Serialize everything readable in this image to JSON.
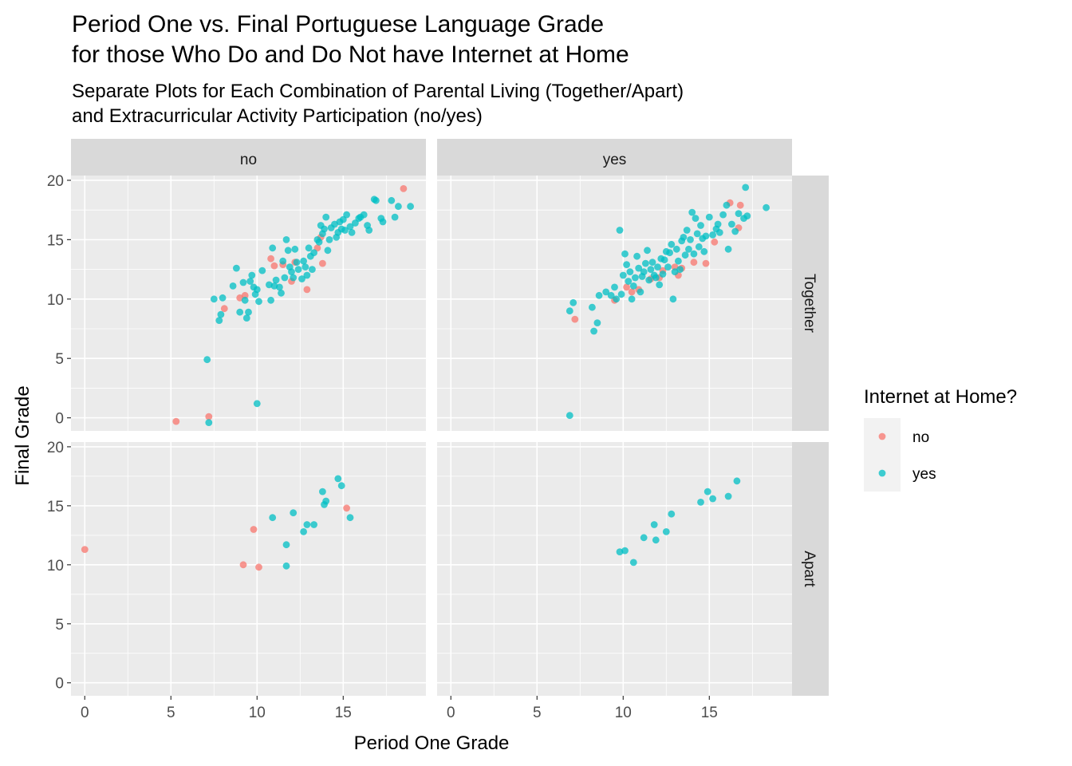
{
  "chart_data": {
    "type": "scatter",
    "title_lines": [
      "Period One vs. Final Portuguese Language Grade",
      "for those Who Do and Do Not have Internet at Home"
    ],
    "subtitle_lines": [
      "Separate Plots for Each Combination of Parental Living (Together/Apart)",
      "and Extracurricular Activity Participation (no/yes)"
    ],
    "xlabel": "Period One Grade",
    "ylabel": "Final Grade",
    "xlim": [
      -0.8,
      19.8
    ],
    "ylim": [
      -1.1,
      20.4
    ],
    "x_ticks": [
      0,
      5,
      10,
      15
    ],
    "y_ticks": [
      0,
      5,
      10,
      15,
      20
    ],
    "facet_cols": [
      "no",
      "yes"
    ],
    "facet_rows": [
      "Together",
      "Apart"
    ],
    "legend": {
      "title": "Internet at Home?",
      "position": "right",
      "entries": [
        {
          "key": "no",
          "label": "no",
          "color": "#F8766D"
        },
        {
          "key": "yes",
          "label": "yes",
          "color": "#00BFC4"
        }
      ]
    },
    "panels": [
      {
        "col": "no",
        "row": "Together",
        "series": [
          {
            "name": "no",
            "points": [
              [
                5.3,
                -0.3
              ],
              [
                7.2,
                0.1
              ],
              [
                8.1,
                9.2
              ],
              [
                9.3,
                10.3
              ],
              [
                9.0,
                10.1
              ],
              [
                10.8,
                13.4
              ],
              [
                11.0,
                12.8
              ],
              [
                11.5,
                12.9
              ],
              [
                12.0,
                11.5
              ],
              [
                12.2,
                13.1
              ],
              [
                12.9,
                10.8
              ],
              [
                13.5,
                14.3
              ],
              [
                13.7,
                15.2
              ],
              [
                13.8,
                13.0
              ],
              [
                18.5,
                19.3
              ]
            ]
          },
          {
            "name": "yes",
            "points": [
              [
                7.2,
                -0.4
              ],
              [
                7.1,
                4.9
              ],
              [
                10.0,
                1.2
              ],
              [
                7.5,
                10.0
              ],
              [
                7.8,
                8.2
              ],
              [
                7.9,
                8.7
              ],
              [
                8.0,
                10.1
              ],
              [
                8.6,
                11.1
              ],
              [
                8.8,
                12.6
              ],
              [
                9.0,
                8.9
              ],
              [
                9.2,
                11.4
              ],
              [
                9.3,
                9.9
              ],
              [
                9.4,
                8.4
              ],
              [
                9.5,
                8.9
              ],
              [
                9.6,
                11.5
              ],
              [
                9.7,
                12.0
              ],
              [
                9.8,
                11.0
              ],
              [
                9.9,
                10.4
              ],
              [
                10.0,
                10.8
              ],
              [
                10.1,
                9.8
              ],
              [
                10.3,
                12.4
              ],
              [
                10.7,
                11.2
              ],
              [
                10.9,
                14.3
              ],
              [
                10.8,
                9.9
              ],
              [
                11.0,
                11.1
              ],
              [
                11.1,
                11.6
              ],
              [
                11.3,
                11.0
              ],
              [
                11.4,
                10.5
              ],
              [
                11.5,
                13.2
              ],
              [
                11.6,
                11.8
              ],
              [
                11.7,
                15.0
              ],
              [
                11.8,
                14.1
              ],
              [
                11.9,
                12.7
              ],
              [
                12.0,
                12.3
              ],
              [
                12.1,
                11.8
              ],
              [
                12.2,
                14.2
              ],
              [
                12.3,
                13.1
              ],
              [
                12.4,
                12.5
              ],
              [
                12.6,
                11.7
              ],
              [
                12.7,
                13.2
              ],
              [
                12.8,
                12.7
              ],
              [
                12.9,
                12.0
              ],
              [
                13.0,
                14.3
              ],
              [
                13.1,
                13.6
              ],
              [
                13.2,
                12.5
              ],
              [
                13.3,
                13.9
              ],
              [
                13.5,
                15.0
              ],
              [
                13.6,
                14.8
              ],
              [
                13.7,
                16.2
              ],
              [
                13.8,
                15.5
              ],
              [
                13.9,
                15.9
              ],
              [
                14.0,
                16.9
              ],
              [
                14.1,
                14.1
              ],
              [
                14.2,
                15.0
              ],
              [
                14.3,
                16.0
              ],
              [
                14.5,
                16.3
              ],
              [
                14.6,
                15.2
              ],
              [
                14.7,
                15.6
              ],
              [
                14.8,
                16.5
              ],
              [
                14.9,
                15.9
              ],
              [
                15.0,
                16.7
              ],
              [
                15.1,
                15.8
              ],
              [
                15.2,
                17.1
              ],
              [
                15.4,
                16.1
              ],
              [
                15.5,
                15.6
              ],
              [
                15.7,
                16.4
              ],
              [
                15.9,
                16.8
              ],
              [
                16.0,
                16.9
              ],
              [
                16.2,
                17.1
              ],
              [
                16.4,
                16.2
              ],
              [
                16.5,
                15.8
              ],
              [
                16.8,
                18.4
              ],
              [
                16.9,
                18.3
              ],
              [
                17.2,
                16.8
              ],
              [
                17.3,
                16.5
              ],
              [
                17.8,
                18.3
              ],
              [
                18.0,
                16.9
              ],
              [
                18.2,
                17.8
              ],
              [
                18.9,
                17.8
              ]
            ]
          }
        ]
      },
      {
        "col": "yes",
        "row": "Together",
        "series": [
          {
            "name": "no",
            "points": [
              [
                7.2,
                8.3
              ],
              [
                9.5,
                9.9
              ],
              [
                10.2,
                11.0
              ],
              [
                10.5,
                10.6
              ],
              [
                10.9,
                10.8
              ],
              [
                11.6,
                11.7
              ],
              [
                12.1,
                11.8
              ],
              [
                12.3,
                12.4
              ],
              [
                13.0,
                12.7
              ],
              [
                13.2,
                12.0
              ],
              [
                13.4,
                12.6
              ],
              [
                14.1,
                13.1
              ],
              [
                14.8,
                13.0
              ],
              [
                15.3,
                14.8
              ],
              [
                16.2,
                18.1
              ],
              [
                16.8,
                17.9
              ],
              [
                16.7,
                16.0
              ]
            ]
          },
          {
            "name": "yes",
            "points": [
              [
                6.9,
                0.2
              ],
              [
                6.9,
                9.0
              ],
              [
                7.1,
                9.7
              ],
              [
                8.2,
                9.3
              ],
              [
                8.3,
                7.3
              ],
              [
                8.5,
                8.0
              ],
              [
                8.6,
                10.3
              ],
              [
                9.0,
                10.6
              ],
              [
                9.3,
                10.3
              ],
              [
                9.5,
                11.0
              ],
              [
                9.6,
                10.0
              ],
              [
                9.8,
                15.8
              ],
              [
                9.9,
                10.4
              ],
              [
                10.0,
                12.0
              ],
              [
                10.1,
                13.8
              ],
              [
                10.2,
                12.9
              ],
              [
                10.3,
                11.5
              ],
              [
                10.4,
                12.3
              ],
              [
                10.5,
                10.0
              ],
              [
                10.6,
                11.1
              ],
              [
                10.7,
                11.8
              ],
              [
                10.8,
                13.6
              ],
              [
                10.9,
                12.6
              ],
              [
                11.0,
                10.6
              ],
              [
                11.1,
                11.9
              ],
              [
                11.2,
                12.3
              ],
              [
                11.3,
                13.0
              ],
              [
                11.4,
                14.1
              ],
              [
                11.5,
                11.6
              ],
              [
                11.6,
                12.5
              ],
              [
                11.7,
                13.1
              ],
              [
                11.8,
                12.0
              ],
              [
                11.9,
                11.8
              ],
              [
                12.0,
                12.7
              ],
              [
                12.1,
                11.2
              ],
              [
                12.2,
                13.4
              ],
              [
                12.3,
                12.1
              ],
              [
                12.4,
                13.3
              ],
              [
                12.5,
                14.0
              ],
              [
                12.6,
                12.7
              ],
              [
                12.7,
                13.9
              ],
              [
                12.8,
                14.6
              ],
              [
                12.9,
                10.0
              ],
              [
                13.0,
                12.3
              ],
              [
                13.1,
                14.2
              ],
              [
                13.2,
                13.2
              ],
              [
                13.3,
                12.5
              ],
              [
                13.4,
                14.9
              ],
              [
                13.5,
                15.2
              ],
              [
                13.6,
                13.7
              ],
              [
                13.7,
                15.8
              ],
              [
                13.8,
                14.2
              ],
              [
                13.9,
                15.0
              ],
              [
                14.0,
                17.3
              ],
              [
                14.1,
                13.8
              ],
              [
                14.2,
                16.8
              ],
              [
                14.3,
                15.5
              ],
              [
                14.4,
                14.4
              ],
              [
                14.5,
                16.2
              ],
              [
                14.6,
                15.1
              ],
              [
                14.7,
                14.0
              ],
              [
                14.8,
                15.3
              ],
              [
                15.0,
                16.9
              ],
              [
                15.2,
                15.4
              ],
              [
                15.4,
                15.9
              ],
              [
                15.5,
                16.3
              ],
              [
                15.6,
                15.6
              ],
              [
                15.8,
                17.1
              ],
              [
                16.0,
                17.9
              ],
              [
                16.1,
                14.2
              ],
              [
                16.3,
                16.3
              ],
              [
                16.5,
                15.7
              ],
              [
                16.7,
                17.2
              ],
              [
                17.0,
                16.8
              ],
              [
                17.1,
                19.4
              ],
              [
                17.2,
                17.0
              ],
              [
                18.3,
                17.7
              ]
            ]
          }
        ]
      },
      {
        "col": "no",
        "row": "Apart",
        "series": [
          {
            "name": "no",
            "points": [
              [
                0.0,
                11.3
              ],
              [
                9.2,
                10.0
              ],
              [
                9.8,
                13.0
              ],
              [
                10.1,
                9.8
              ],
              [
                15.2,
                14.8
              ]
            ]
          },
          {
            "name": "yes",
            "points": [
              [
                10.9,
                14.0
              ],
              [
                11.7,
                11.7
              ],
              [
                11.7,
                9.9
              ],
              [
                12.1,
                14.4
              ],
              [
                12.7,
                12.8
              ],
              [
                12.9,
                13.4
              ],
              [
                13.3,
                13.4
              ],
              [
                13.8,
                16.2
              ],
              [
                13.9,
                15.1
              ],
              [
                14.0,
                15.4
              ],
              [
                14.7,
                17.3
              ],
              [
                14.9,
                16.7
              ],
              [
                15.4,
                14.0
              ]
            ]
          }
        ]
      },
      {
        "col": "yes",
        "row": "Apart",
        "series": [
          {
            "name": "yes",
            "points": [
              [
                9.8,
                11.1
              ],
              [
                10.1,
                11.2
              ],
              [
                10.6,
                10.2
              ],
              [
                11.2,
                12.3
              ],
              [
                11.8,
                13.4
              ],
              [
                11.9,
                12.1
              ],
              [
                12.5,
                12.8
              ],
              [
                12.8,
                14.3
              ],
              [
                14.5,
                15.3
              ],
              [
                14.9,
                16.2
              ],
              [
                15.2,
                15.6
              ],
              [
                16.1,
                15.8
              ],
              [
                16.6,
                17.1
              ]
            ]
          }
        ]
      }
    ]
  }
}
